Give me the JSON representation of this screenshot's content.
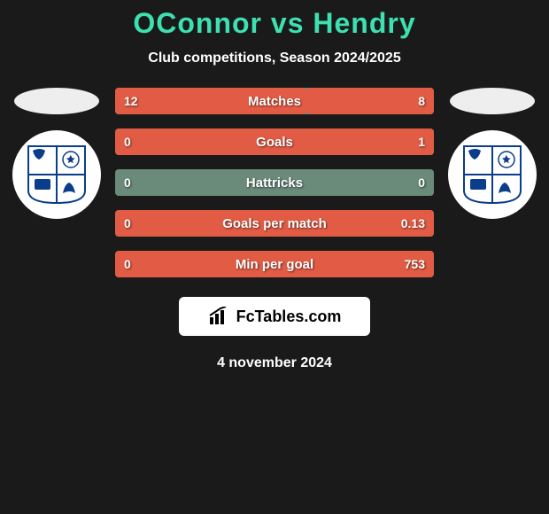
{
  "title": "OConnor vs Hendry",
  "subtitle": "Club competitions, Season 2024/2025",
  "logo_text": "FcTables.com",
  "date": "4 november 2024",
  "colors": {
    "accent": "#3de0af",
    "bar_empty": "#6a8a7a",
    "fill_left": "#e25c45",
    "fill_right": "#e25c45",
    "page_bg": "#1a1a1a",
    "text": "#ffffff",
    "crest_blue": "#0b3d8a",
    "crest_white": "#ffffff"
  },
  "stats": [
    {
      "label": "Matches",
      "lval": "12",
      "rval": "8",
      "lfill_pct": 60,
      "rfill_pct": 40
    },
    {
      "label": "Goals",
      "lval": "0",
      "rval": "1",
      "lfill_pct": 0,
      "rfill_pct": 100
    },
    {
      "label": "Hattricks",
      "lval": "0",
      "rval": "0",
      "lfill_pct": 0,
      "rfill_pct": 0
    },
    {
      "label": "Goals per match",
      "lval": "0",
      "rval": "0.13",
      "lfill_pct": 0,
      "rfill_pct": 100
    },
    {
      "label": "Min per goal",
      "lval": "0",
      "rval": "753",
      "lfill_pct": 0,
      "rfill_pct": 100
    }
  ]
}
